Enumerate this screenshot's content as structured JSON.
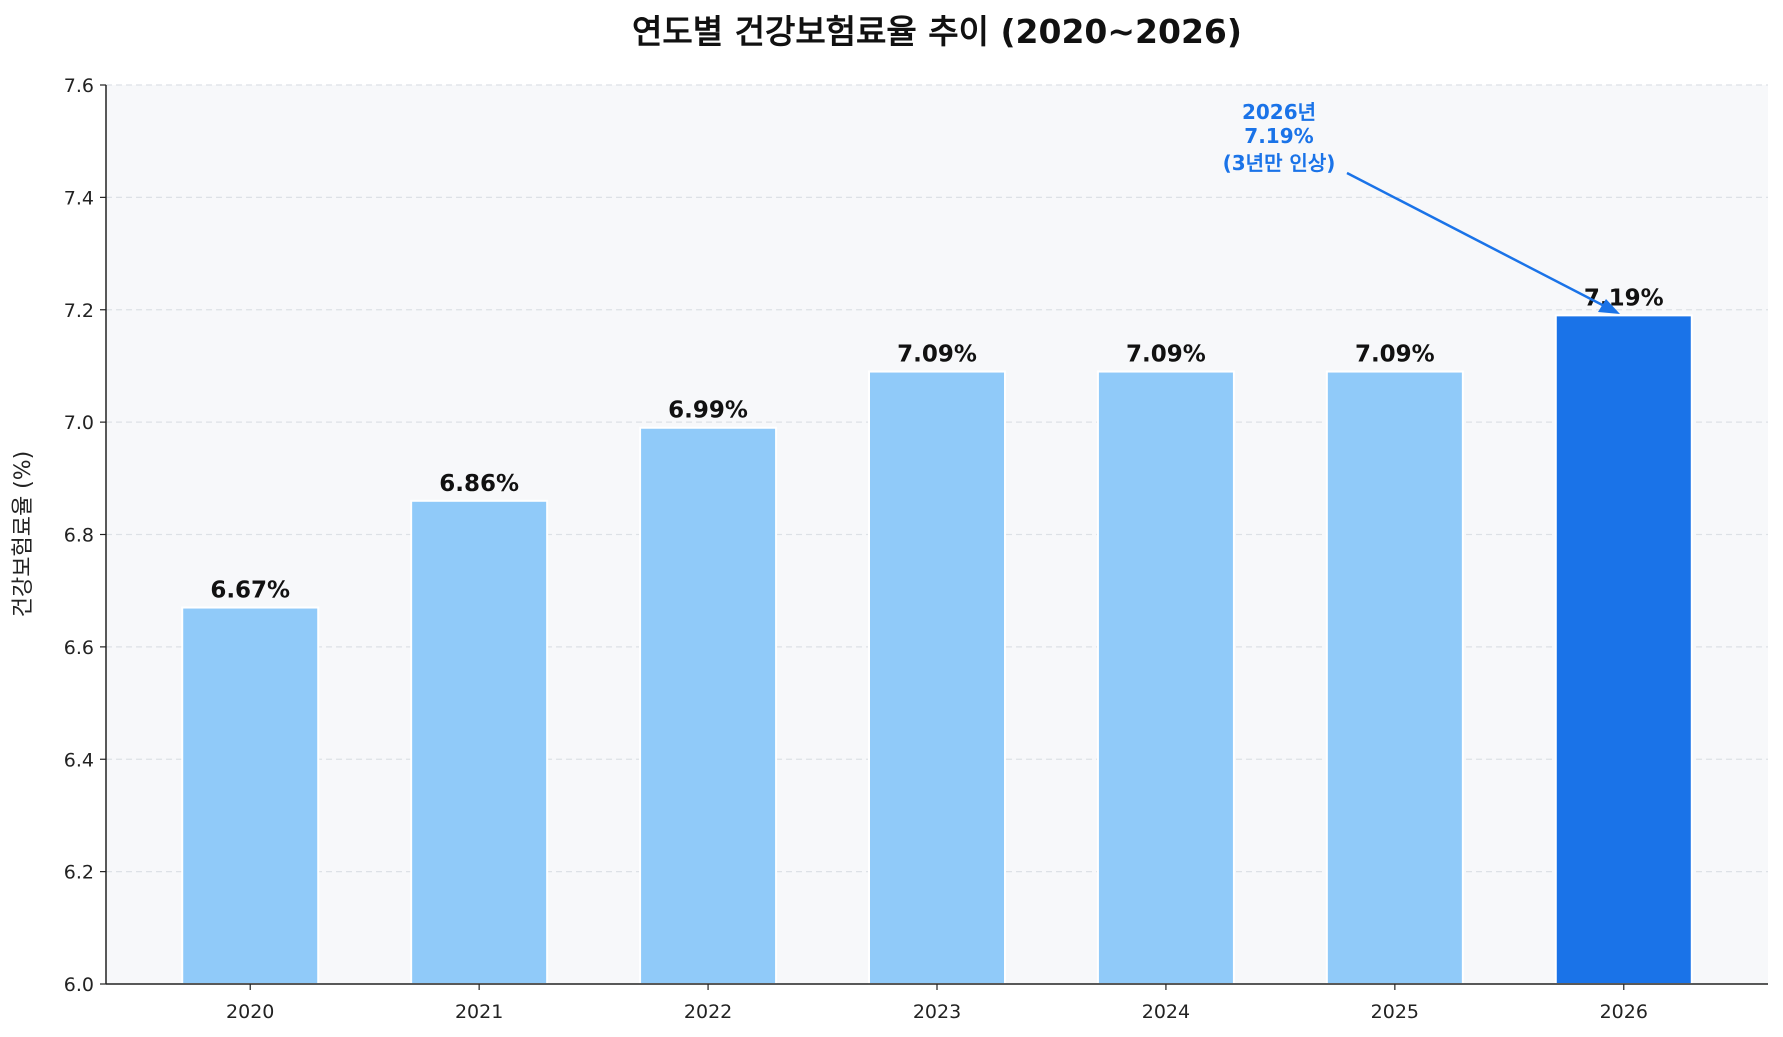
{
  "chart_data": {
    "type": "bar",
    "title": "연도별 건강보험료율 추이 (2020~2026)",
    "xlabel": "",
    "ylabel": "건강보험료율 (%)",
    "categories": [
      "2020",
      "2021",
      "2022",
      "2023",
      "2024",
      "2025",
      "2026"
    ],
    "values": [
      6.67,
      6.86,
      6.99,
      7.09,
      7.09,
      7.09,
      7.19
    ],
    "data_labels": [
      "6.67%",
      "6.86%",
      "6.99%",
      "7.09%",
      "7.09%",
      "7.09%",
      "7.19%"
    ],
    "ylim": [
      6.0,
      7.6
    ],
    "yticks": [
      "6.0",
      "6.2",
      "6.4",
      "6.6",
      "6.8",
      "7.0",
      "7.2",
      "7.4",
      "7.6"
    ],
    "grid": "horizontal dashed",
    "colors": {
      "bar": "#90CAF9",
      "highlight": "#1A73E8",
      "background": "#F7F8FA",
      "annotation": "#1A73E8"
    },
    "highlight_category": "2026",
    "annotation": {
      "lines": [
        "2026년",
        "7.19%",
        "(3년만 인상)"
      ],
      "target_category": "2026",
      "target_value": 7.19
    }
  }
}
